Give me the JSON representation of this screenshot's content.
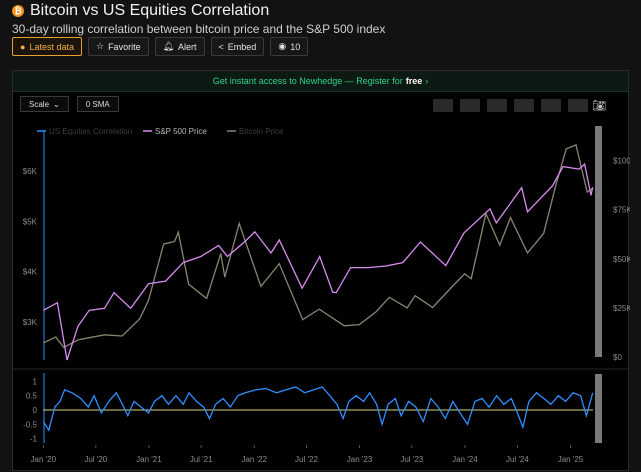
{
  "header": {
    "title": "Bitcoin vs US Equities Correlation",
    "subtitle": "30-day rolling correlation between bitcoin price and the S&P 500 index",
    "icon": "bitcoin-icon"
  },
  "actions": {
    "latest_data": "Latest data",
    "favorite": "Favorite",
    "alert": "Alert",
    "embed": "Embed",
    "views": "10"
  },
  "banner": {
    "text": "Get instant access to Newhedge — Register for",
    "highlight": "free",
    "arrow": "›"
  },
  "toolbar": {
    "scale": "Scale",
    "sma": "0 SMA"
  },
  "colors": {
    "correlation": "#2f8fff",
    "sp500": "#d98cf0",
    "bitcoin": "#8a8570",
    "zero_line": "#d9d27a",
    "accent": "#f4b04a"
  },
  "chart_data": [
    {
      "type": "line",
      "legend": [
        "US Equities Correlation",
        "S&P 500 Price",
        "Bitcoin Price"
      ],
      "left_axis": {
        "ticks": [
          "$6K",
          "$5K",
          "$4K",
          "$3K"
        ],
        "values": [
          6000,
          5000,
          4000,
          3000
        ],
        "range": [
          2300,
          6600
        ]
      },
      "right_axis": {
        "ticks": [
          "$100K",
          "$75K",
          "$50K",
          "$25K",
          "$0"
        ],
        "values": [
          100000,
          75000,
          50000,
          25000,
          0
        ],
        "range": [
          0,
          110000
        ]
      },
      "x_range": [
        "2019-12-31",
        "2025-03-20"
      ],
      "series": [
        {
          "name": "S&P 500 Price",
          "axis": "left",
          "points": [
            [
              "2020-01-01",
              3230
            ],
            [
              "2020-02-19",
              3380
            ],
            [
              "2020-03-23",
              2240
            ],
            [
              "2020-04-30",
              2910
            ],
            [
              "2020-06-08",
              3230
            ],
            [
              "2020-07-31",
              3270
            ],
            [
              "2020-09-02",
              3580
            ],
            [
              "2020-10-30",
              3270
            ],
            [
              "2020-12-31",
              3760
            ],
            [
              "2021-02-28",
              3810
            ],
            [
              "2021-04-30",
              4180
            ],
            [
              "2021-06-30",
              4300
            ],
            [
              "2021-08-31",
              4520
            ],
            [
              "2021-09-30",
              4300
            ],
            [
              "2021-11-30",
              4600
            ],
            [
              "2022-01-03",
              4790
            ],
            [
              "2022-02-28",
              4370
            ],
            [
              "2022-03-29",
              4630
            ],
            [
              "2022-06-16",
              3670
            ],
            [
              "2022-08-16",
              4300
            ],
            [
              "2022-09-30",
              3590
            ],
            [
              "2022-10-12",
              3580
            ],
            [
              "2022-12-01",
              4080
            ],
            [
              "2023-01-31",
              4080
            ],
            [
              "2023-03-31",
              4110
            ],
            [
              "2023-05-31",
              4180
            ],
            [
              "2023-07-31",
              4590
            ],
            [
              "2023-10-27",
              4120
            ],
            [
              "2023-12-29",
              4770
            ],
            [
              "2024-02-29",
              5100
            ],
            [
              "2024-03-28",
              5250
            ],
            [
              "2024-04-19",
              4970
            ],
            [
              "2024-07-16",
              5670
            ],
            [
              "2024-08-05",
              5190
            ],
            [
              "2024-10-31",
              5710
            ],
            [
              "2024-12-06",
              6090
            ],
            [
              "2025-01-31",
              6040
            ],
            [
              "2025-02-19",
              6140
            ],
            [
              "2025-03-13",
              5520
            ],
            [
              "2025-03-19",
              5680
            ]
          ]
        },
        {
          "name": "Bitcoin Price",
          "axis": "right",
          "points": [
            [
              "2020-01-01",
              7200
            ],
            [
              "2020-02-13",
              10200
            ],
            [
              "2020-03-12",
              4900
            ],
            [
              "2020-04-30",
              8700
            ],
            [
              "2020-07-31",
              11300
            ],
            [
              "2020-09-30",
              10700
            ],
            [
              "2020-11-30",
              19400
            ],
            [
              "2020-12-31",
              29000
            ],
            [
              "2021-02-21",
              57500
            ],
            [
              "2021-03-31",
              58800
            ],
            [
              "2021-04-13",
              63500
            ],
            [
              "2021-05-19",
              37000
            ],
            [
              "2021-07-20",
              29800
            ],
            [
              "2021-09-07",
              52700
            ],
            [
              "2021-09-21",
              40700
            ],
            [
              "2021-11-10",
              68000
            ],
            [
              "2022-01-24",
              36000
            ],
            [
              "2022-03-29",
              47500
            ],
            [
              "2022-06-18",
              19000
            ],
            [
              "2022-08-14",
              24400
            ],
            [
              "2022-11-09",
              15900
            ],
            [
              "2022-12-31",
              16500
            ],
            [
              "2023-02-28",
              23100
            ],
            [
              "2023-04-14",
              30400
            ],
            [
              "2023-06-15",
              25000
            ],
            [
              "2023-07-13",
              31200
            ],
            [
              "2023-09-11",
              25200
            ],
            [
              "2023-11-30",
              37700
            ],
            [
              "2023-12-31",
              42300
            ],
            [
              "2024-01-23",
              39800
            ],
            [
              "2024-03-14",
              73000
            ],
            [
              "2024-05-01",
              57000
            ],
            [
              "2024-06-07",
              71000
            ],
            [
              "2024-08-05",
              53000
            ],
            [
              "2024-09-30",
              63000
            ],
            [
              "2024-11-12",
              88000
            ],
            [
              "2024-12-17",
              106000
            ],
            [
              "2025-01-20",
              108000
            ],
            [
              "2025-02-28",
              84000
            ],
            [
              "2025-03-19",
              86000
            ]
          ]
        }
      ]
    },
    {
      "type": "line",
      "y_axis": {
        "ticks": [
          "1",
          "0.5",
          "0",
          "-0.5",
          "-1"
        ],
        "values": [
          1,
          0.5,
          0,
          -0.5,
          -1
        ],
        "range": [
          -1.15,
          1.15
        ]
      },
      "x_ticks": [
        "Jan '20",
        "Jul '20",
        "Jan '21",
        "Jul '21",
        "Jan '22",
        "Jul '22",
        "Jan '23",
        "Jul '23",
        "Jan '24",
        "Jul '24",
        "Jan '25"
      ],
      "x_tick_dates": [
        "2020-01-01",
        "2020-07-01",
        "2021-01-01",
        "2021-07-01",
        "2022-01-01",
        "2022-07-01",
        "2023-01-01",
        "2023-07-01",
        "2024-01-01",
        "2024-07-01",
        "2025-01-01"
      ],
      "series": [
        {
          "name": "US Equities Correlation",
          "points": [
            [
              "2020-01-01",
              -0.4
            ],
            [
              "2020-01-20",
              -0.7
            ],
            [
              "2020-02-10",
              0.1
            ],
            [
              "2020-02-28",
              0.3
            ],
            [
              "2020-03-15",
              0.7
            ],
            [
              "2020-04-10",
              0.6
            ],
            [
              "2020-05-10",
              0.4
            ],
            [
              "2020-06-05",
              0.1
            ],
            [
              "2020-06-25",
              0.5
            ],
            [
              "2020-07-20",
              -0.1
            ],
            [
              "2020-08-15",
              0.3
            ],
            [
              "2020-09-10",
              0.6
            ],
            [
              "2020-10-01",
              0.2
            ],
            [
              "2020-10-20",
              -0.2
            ],
            [
              "2020-11-10",
              0.3
            ],
            [
              "2020-12-05",
              0.1
            ],
            [
              "2020-12-31",
              -0.1
            ],
            [
              "2021-01-20",
              0.3
            ],
            [
              "2021-02-15",
              0.5
            ],
            [
              "2021-03-10",
              0.2
            ],
            [
              "2021-04-05",
              0.5
            ],
            [
              "2021-04-30",
              0.2
            ],
            [
              "2021-05-20",
              0.6
            ],
            [
              "2021-06-15",
              0.3
            ],
            [
              "2021-07-10",
              0.1
            ],
            [
              "2021-07-30",
              -0.3
            ],
            [
              "2021-08-20",
              0.2
            ],
            [
              "2021-09-15",
              0.4
            ],
            [
              "2021-10-10",
              0.1
            ],
            [
              "2021-11-05",
              0.5
            ],
            [
              "2021-12-01",
              0.6
            ],
            [
              "2022-01-05",
              0.7
            ],
            [
              "2022-02-10",
              0.75
            ],
            [
              "2022-03-20",
              0.6
            ],
            [
              "2022-04-20",
              0.7
            ],
            [
              "2022-05-25",
              0.8
            ],
            [
              "2022-06-25",
              0.6
            ],
            [
              "2022-07-25",
              0.7
            ],
            [
              "2022-08-25",
              0.8
            ],
            [
              "2022-09-20",
              0.5
            ],
            [
              "2022-10-15",
              0.2
            ],
            [
              "2022-11-05",
              -0.3
            ],
            [
              "2022-11-25",
              0.3
            ],
            [
              "2022-12-20",
              0.5
            ],
            [
              "2023-01-15",
              0.3
            ],
            [
              "2023-02-05",
              0.6
            ],
            [
              "2023-03-01",
              0.2
            ],
            [
              "2023-03-20",
              -0.5
            ],
            [
              "2023-04-10",
              0.2
            ],
            [
              "2023-05-05",
              0.4
            ],
            [
              "2023-05-25",
              -0.2
            ],
            [
              "2023-06-20",
              0.3
            ],
            [
              "2023-07-15",
              0.1
            ],
            [
              "2023-08-10",
              -0.4
            ],
            [
              "2023-09-05",
              0.4
            ],
            [
              "2023-10-01",
              0.1
            ],
            [
              "2023-10-25",
              -0.3
            ],
            [
              "2023-11-20",
              0.3
            ],
            [
              "2023-12-15",
              -0.1
            ],
            [
              "2024-01-10",
              -0.5
            ],
            [
              "2024-02-05",
              0.3
            ],
            [
              "2024-03-01",
              0.4
            ],
            [
              "2024-03-25",
              0.1
            ],
            [
              "2024-04-20",
              0.5
            ],
            [
              "2024-05-15",
              0.2
            ],
            [
              "2024-06-10",
              0.4
            ],
            [
              "2024-07-01",
              -0.1
            ],
            [
              "2024-07-20",
              -0.6
            ],
            [
              "2024-08-10",
              0.3
            ],
            [
              "2024-09-05",
              0.6
            ],
            [
              "2024-10-01",
              0.4
            ],
            [
              "2024-10-25",
              0.2
            ],
            [
              "2024-11-20",
              0.5
            ],
            [
              "2024-12-15",
              0.3
            ],
            [
              "2025-01-10",
              0.6
            ],
            [
              "2025-02-05",
              0.5
            ],
            [
              "2025-02-25",
              -0.2
            ],
            [
              "2025-03-19",
              0.6
            ]
          ]
        }
      ]
    }
  ]
}
